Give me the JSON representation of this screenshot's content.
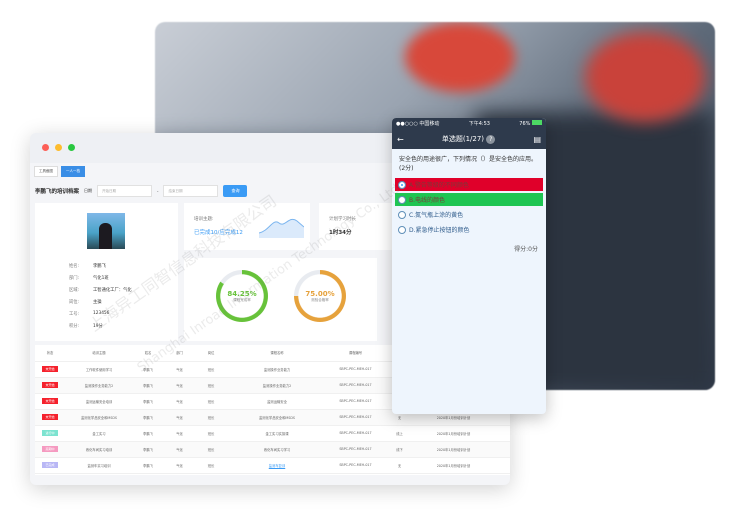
{
  "desktop": {
    "tabs": [
      "工具截图",
      "一人一档"
    ],
    "title": "李鹏飞的培训档案",
    "date_label": "日期",
    "start_placeholder": "开始日期",
    "sep": "-",
    "end_placeholder": "结束日期",
    "query": "查询",
    "profile": [
      {
        "k": "姓名:",
        "v": "李鹏飞"
      },
      {
        "k": "部门:",
        "v": "气化1班"
      },
      {
        "k": "区域:",
        "v": "工智通化工厂：气化"
      },
      {
        "k": "岗位:",
        "v": "主操"
      },
      {
        "k": "工号:",
        "v": "123456"
      },
      {
        "k": "积分:",
        "v": "19分"
      }
    ],
    "theme_label": "培训主题:",
    "theme_value": "已完成10/应完成12",
    "plan_label": "计划学习时长",
    "plan_value": "1时34分",
    "ring1": {
      "value": "84.25%",
      "label": "课程完成率",
      "color": "#67c23a",
      "percent": 84.25
    },
    "ring2": {
      "value": "75.00%",
      "label": "测验合格率",
      "color": "#e6a23c",
      "percent": 75
    },
    "table": {
      "headers": [
        "状态",
        "培训主题",
        "姓名",
        "部门",
        "岗位",
        "课程名称",
        "课程编号",
        "授",
        "计划名称",
        ""
      ],
      "rows": [
        {
          "status": "未开始",
          "color": "#f5222d",
          "c": [
            "工作软件使用学习",
            "李鹏飞",
            "气化",
            "班长",
            "监测操作业务能力",
            "SBPC-PEC-MEH-017",
            "",
            "",
            ""
          ]
        },
        {
          "status": "未开始",
          "color": "#f5222d",
          "c": [
            "监测操作业务能力2",
            "李鹏飞",
            "气化",
            "班长",
            "监测操作业务能力2",
            "SBPC-PEC-MEH-017",
            "",
            "",
            ""
          ]
        },
        {
          "status": "未开始",
          "color": "#f5222d",
          "c": [
            "监测运输安全培训",
            "李鹏飞",
            "气化",
            "班长",
            "监测运输安全",
            "SBPC-PEC-MEH-017",
            "",
            "",
            ""
          ]
        },
        {
          "status": "未开始",
          "color": "#f5222d",
          "c": [
            "监测化学品安全和MSDS",
            "李鹏飞",
            "气化",
            "班长",
            "监测化学品安全和MSDS",
            "SBPC-PEC-MEH-017",
            "无",
            "2020年1月份培训计划",
            "责任"
          ]
        },
        {
          "status": "进行中",
          "color": "#7de3d0",
          "c": [
            "金工实习",
            "李鹏飞",
            "气化",
            "班长",
            "金工实习实操课",
            "SBPC-PEC-MEH-017",
            "线上",
            "2020年1月份培训计划",
            "新建"
          ]
        },
        {
          "status": "延期中",
          "color": "#f59ac0",
          "c": [
            "炼化车间实习培训",
            "李鹏飞",
            "气化",
            "班长",
            "炼化车间实习学习",
            "SBPC-PEC-MEH-017",
            "线下",
            "2020年1月份培训计划",
            "新建"
          ]
        },
        {
          "status": "已完成",
          "color": "#b9b7f5",
          "c": [
            "监测车实习培训",
            "李鹏飞",
            "气化",
            "班长",
            "监测车复训",
            "SBPC-PEC-MEH-017",
            "无",
            "2020年1月份培训计划",
            "新建"
          ]
        }
      ]
    }
  },
  "phone": {
    "carrier": "●●○○○ 中国移动",
    "time": "下午4:53",
    "battery": "76%",
    "title": "单选题(1/27)",
    "question": "安全色的用途很广，下列情况（）是安全色的应用。(2分)",
    "options": [
      {
        "text": "A.警告等级的不同颜色",
        "bg": "#e0002a"
      },
      {
        "text": "B.电线的颜色",
        "bg": "#1ec552"
      },
      {
        "text": "C.氮气瓶上涂的黄色",
        "bg": ""
      },
      {
        "text": "D.紧急停止按钮的颜色",
        "bg": ""
      }
    ],
    "score": "得分:0分"
  },
  "watermark": [
    "上海异工同智信息科技有限公司",
    "Shanghai Inroad Information Technology Co., Ltd."
  ]
}
